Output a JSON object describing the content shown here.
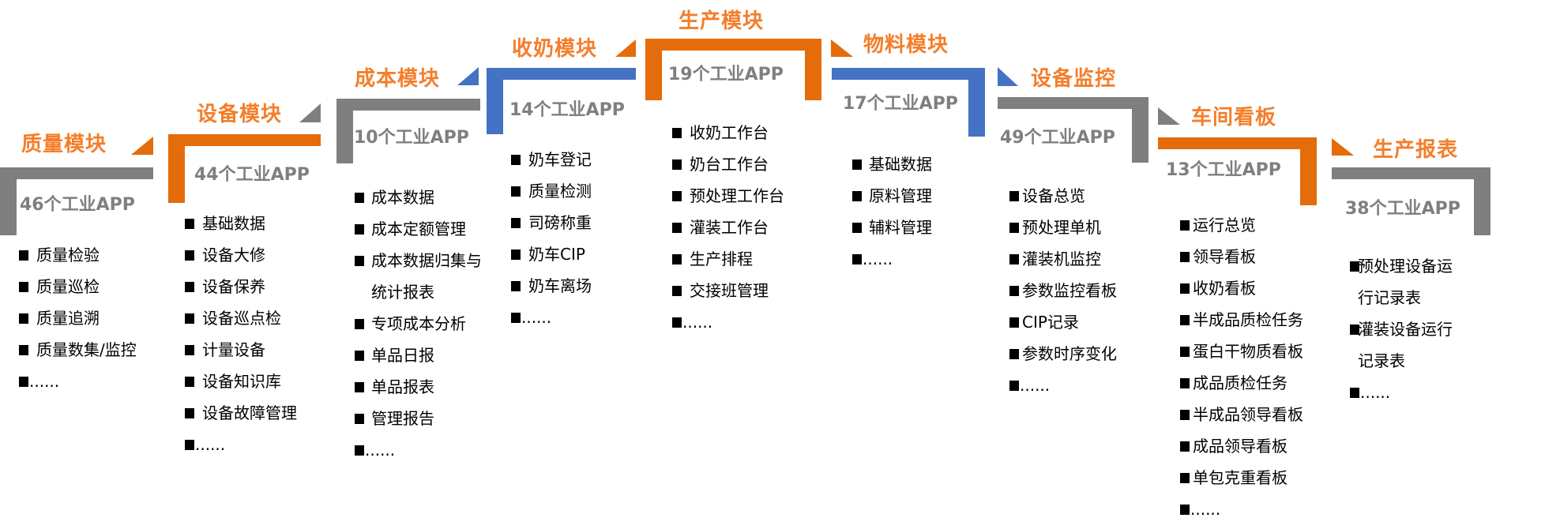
{
  "colors": {
    "orange": "#E46C0A",
    "gray": "#7F7F7F",
    "blue": "#4472C4",
    "title_orange": "#F47E2A",
    "count_text": "#7F7F7F"
  },
  "modules": [
    {
      "title": "质量模块",
      "count": "46个工业APP",
      "bracket_color": "#7F7F7F",
      "triangle_color": "#E46C0A",
      "items": [
        "质量检验",
        "质量巡检",
        "质量追溯",
        "质量数集/监控",
        "......"
      ]
    },
    {
      "title": "设备模块",
      "count": "44个工业APP",
      "bracket_color": "#E46C0A",
      "triangle_color": "#7F7F7F",
      "items": [
        "基础数据",
        "设备大修",
        "设备保养",
        "设备巡点检",
        "计量设备",
        "设备知识库",
        "设备故障管理",
        "......"
      ]
    },
    {
      "title": "成本模块",
      "count": "10个工业APP",
      "bracket_color": "#7F7F7F",
      "triangle_color": "#4472C4",
      "items": [
        "成本数据",
        "成本定额管理",
        "成本数据归集与统计报表",
        "专项成本分析",
        "单品日报",
        "单品报表",
        "管理报告",
        "......"
      ]
    },
    {
      "title": "收奶模块",
      "count": "14个工业APP",
      "bracket_color": "#4472C4",
      "triangle_color": "#E46C0A",
      "items": [
        "奶车登记",
        "质量检测",
        "司磅称重",
        "奶车CIP",
        "奶车离场",
        "......"
      ]
    },
    {
      "title": "生产模块",
      "count": "19个工业APP",
      "bracket_color": "#E46C0A",
      "items": [
        "收奶工作台",
        "奶台工作台",
        "预处理工作台",
        "灌装工作台",
        "生产排程",
        "交接班管理",
        "......"
      ]
    },
    {
      "title": "物料模块",
      "count": "17个工业APP",
      "bracket_color": "#4472C4",
      "triangle_color": "#E46C0A",
      "items": [
        "基础数据",
        "原料管理",
        "辅料管理",
        "......"
      ]
    },
    {
      "title": "设备监控",
      "count": "49个工业APP",
      "bracket_color": "#7F7F7F",
      "triangle_color": "#4472C4",
      "items": [
        "设备总览",
        "预处理单机",
        "灌装机监控",
        "参数监控看板",
        "CIP记录",
        "参数时序变化",
        "......"
      ]
    },
    {
      "title": "车间看板",
      "count": "13个工业APP",
      "bracket_color": "#E46C0A",
      "triangle_color": "#7F7F7F",
      "items": [
        "运行总览",
        "领导看板",
        "收奶看板",
        "半成品质检任务",
        "蛋白干物质看板",
        "成品质检任务",
        "半成品领导看板",
        "成品领导看板",
        "单包克重看板",
        "......"
      ]
    },
    {
      "title": "生产报表",
      "count": "38个工业APP",
      "bracket_color": "#7F7F7F",
      "triangle_color": "#E46C0A",
      "items": [
        "预处理设备运行记录表",
        "灌装设备运行记录表",
        "......"
      ]
    }
  ]
}
